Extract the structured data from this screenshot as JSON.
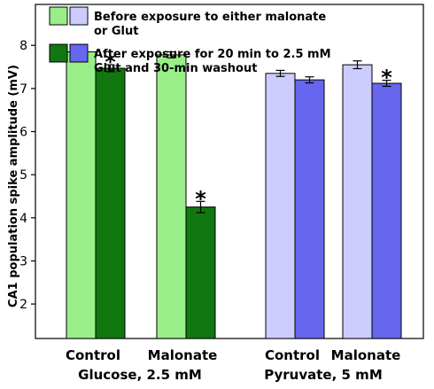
{
  "chart_data": {
    "type": "bar",
    "ylabel": "CA1 population spike amplitude (mV)",
    "yticks": [
      2,
      3,
      4,
      5,
      6,
      7,
      8
    ],
    "ylim": [
      1.2,
      8.95
    ],
    "grid": false,
    "legend_position": "top-left",
    "groups": [
      {
        "label": "Glucose, 2.5 mM",
        "categories": [
          "Control",
          "Malonate"
        ]
      },
      {
        "label": "Pyruvate, 5 mM",
        "categories": [
          "Control",
          "Malonate"
        ]
      }
    ],
    "series": [
      {
        "key": "before",
        "colors": [
          "#99ee88",
          "#ccccff"
        ],
        "values": [
          7.85,
          7.78,
          7.35,
          7.55
        ],
        "errors": [
          0.07,
          0.07,
          0.07,
          0.09
        ]
      },
      {
        "key": "after",
        "colors": [
          "#117711",
          "#6666ee"
        ],
        "values": [
          7.47,
          4.25,
          7.2,
          7.12
        ],
        "errors": [
          0.08,
          0.13,
          0.07,
          0.07
        ]
      }
    ],
    "significance": [
      {
        "category_index": 0,
        "series": "after",
        "label": "*"
      },
      {
        "category_index": 1,
        "series": "after",
        "label": "*"
      },
      {
        "category_index": 3,
        "series": "after",
        "label": "*"
      }
    ],
    "legend": [
      {
        "line1": "Before exposure to either malonate",
        "line2": "or Glut"
      },
      {
        "line1": "After exposure for 20 min to 2.5 mM",
        "line2": "Glut and 30-min washout"
      }
    ]
  }
}
